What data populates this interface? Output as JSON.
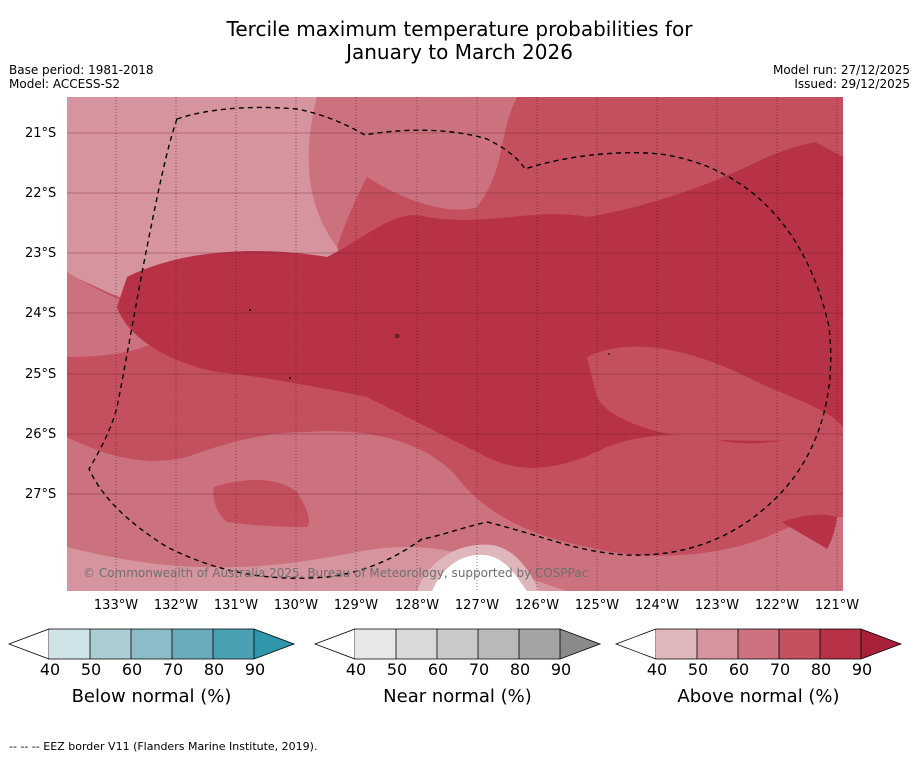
{
  "title": {
    "line1": "Tercile maximum temperature probabilities for",
    "line2": "January to March 2026"
  },
  "meta": {
    "base_period": "Base period: 1981-2018",
    "model": "Model: ACCESS-S2",
    "model_run": "Model run: 27/12/2025",
    "issued": "Issued: 29/12/2025"
  },
  "map": {
    "copyright": "© Commonwealth of Australia 2025, Bureau of Meteorology, supported by COSPPac",
    "lat_labels": [
      "21°S",
      "22°S",
      "23°S",
      "24°S",
      "25°S",
      "26°S",
      "27°S"
    ],
    "lon_labels": [
      "133°W",
      "132°W",
      "131°W",
      "130°W",
      "129°W",
      "128°W",
      "127°W",
      "126°W",
      "125°W",
      "124°W",
      "123°W",
      "122°W",
      "121°W"
    ],
    "palette_above": [
      "#e0b6bd",
      "#d6959e",
      "#cc727e",
      "#c4505f",
      "#b73147"
    ],
    "boundary": "EEZ border (dashed)"
  },
  "colorbars": [
    {
      "name": "below",
      "title": "Below normal (%)",
      "ticks": [
        "40",
        "50",
        "60",
        "70",
        "80",
        "90"
      ],
      "colors": [
        "#cde3e8",
        "#aaccd3",
        "#8bbcc7",
        "#6aacbb",
        "#49a0b2",
        "#3096a9"
      ]
    },
    {
      "name": "near",
      "title": "Near normal (%)",
      "ticks": [
        "40",
        "50",
        "60",
        "70",
        "80",
        "90"
      ],
      "colors": [
        "#e7e7e7",
        "#d9d9d9",
        "#cacaca",
        "#b9b9b9",
        "#a3a3a3",
        "#8a8a8a"
      ]
    },
    {
      "name": "above",
      "title": "Above normal (%)",
      "ticks": [
        "40",
        "50",
        "60",
        "70",
        "80",
        "90"
      ],
      "colors": [
        "#e0b6bd",
        "#d6959e",
        "#cc727e",
        "#c4505f",
        "#b73147",
        "#a8203a"
      ]
    }
  ],
  "footer": "--  --  -- EEZ border V11 (Flanders Marine Institute, 2019)."
}
